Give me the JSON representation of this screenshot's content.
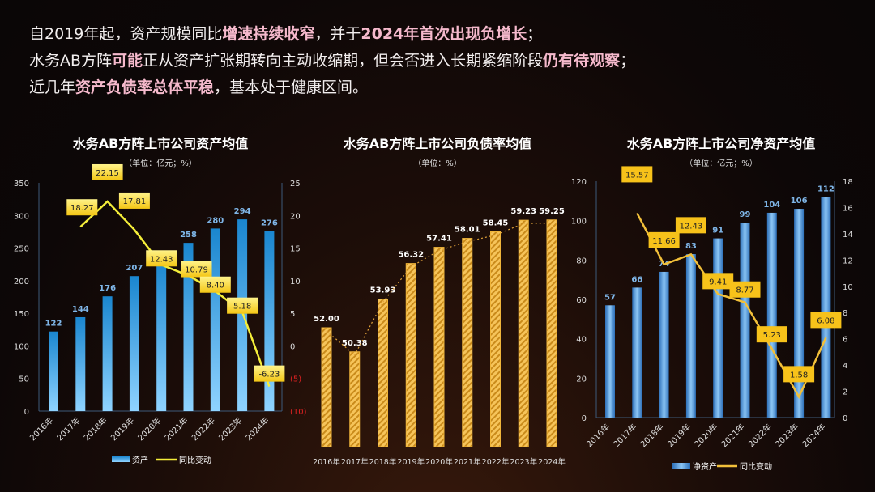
{
  "intro": {
    "line1": [
      {
        "t": "自2019年起，资产规模同比",
        "b": false
      },
      {
        "t": "增速持续收窄",
        "b": true
      },
      {
        "t": "，并于",
        "b": false
      },
      {
        "t": "2024年首次出现负增长",
        "b": true
      },
      {
        "t": "；",
        "b": false
      }
    ],
    "line2": [
      {
        "t": "水务AB方阵",
        "b": false
      },
      {
        "t": "可能",
        "b": true
      },
      {
        "t": "正从资产扩张期转向主动收缩期，但会否进入长期紧缩阶段",
        "b": false
      },
      {
        "t": "仍有待观察",
        "b": true
      },
      {
        "t": "；",
        "b": false
      }
    ],
    "line3": [
      {
        "t": "近几年",
        "b": false
      },
      {
        "t": "资产负债率总体平稳",
        "b": true
      },
      {
        "t": "，基本处于健康区间。",
        "b": false
      }
    ]
  },
  "colors": {
    "bar_blue": "#2aa6e8",
    "line_yellow": "#f5ee3a",
    "label_yellow": "#f7d21a",
    "hatch": "#f0b53a",
    "highlight": "#f5b9cc"
  },
  "chart_data": [
    {
      "type": "bar+line",
      "title": "水务AB方阵上市公司资产均值",
      "subtitle": "（单位：亿元；%）",
      "categories": [
        "2016年",
        "2017年",
        "2018年",
        "2019年",
        "2020年",
        "2021年",
        "2022年",
        "2023年",
        "2024年"
      ],
      "series": [
        {
          "name": "资产",
          "type": "bar",
          "values": [
            122,
            144,
            176,
            207,
            232,
            258,
            280,
            294,
            276
          ],
          "labels": [
            "122",
            "144",
            "176",
            "207",
            "",
            "258",
            "280",
            "294",
            "276"
          ]
        },
        {
          "name": "同比变动",
          "type": "line",
          "axis": "right",
          "values": [
            null,
            18.27,
            22.15,
            17.81,
            12.43,
            10.79,
            8.4,
            5.18,
            -6.23
          ]
        }
      ],
      "ylim": [
        0,
        350
      ],
      "yticks": [
        0,
        50,
        100,
        150,
        200,
        250,
        300,
        350
      ],
      "y2lim": [
        -10,
        25
      ],
      "y2ticks": [
        "(10)",
        "(5)",
        "0",
        "5",
        "10",
        "15",
        "20",
        "25"
      ]
    },
    {
      "type": "bar",
      "title": "水务AB方阵上市公司负债率均值",
      "subtitle": "（单位：%）",
      "categories": [
        "2016年",
        "2017年",
        "2018年",
        "2019年",
        "2020年",
        "2021年",
        "2022年",
        "2023年",
        "2024年"
      ],
      "values": [
        52.0,
        50.38,
        53.93,
        56.32,
        57.41,
        58.01,
        58.45,
        59.23,
        59.25
      ],
      "ylim": [
        44,
        60
      ]
    },
    {
      "type": "bar+line",
      "title": "水务AB方阵上市公司净资产均值",
      "subtitle": "（单位：亿元；%）",
      "categories": [
        "2016年",
        "2017年",
        "2018年",
        "2019年",
        "2020年",
        "2021年",
        "2022年",
        "2023年",
        "2024年"
      ],
      "series": [
        {
          "name": "净资产",
          "type": "bar",
          "values": [
            57,
            66,
            74,
            83,
            91,
            99,
            104,
            106,
            112
          ]
        },
        {
          "name": "同比变动",
          "type": "line",
          "axis": "right",
          "values": [
            null,
            15.57,
            11.66,
            12.43,
            9.41,
            8.77,
            5.23,
            1.58,
            6.08
          ]
        }
      ],
      "ylim": [
        0,
        120
      ],
      "yticks": [
        0,
        20,
        40,
        60,
        80,
        100,
        120
      ],
      "y2lim": [
        0,
        18
      ],
      "y2ticks": [
        "0",
        "2",
        "4",
        "6",
        "8",
        "10",
        "12",
        "14",
        "16",
        "18"
      ]
    }
  ]
}
